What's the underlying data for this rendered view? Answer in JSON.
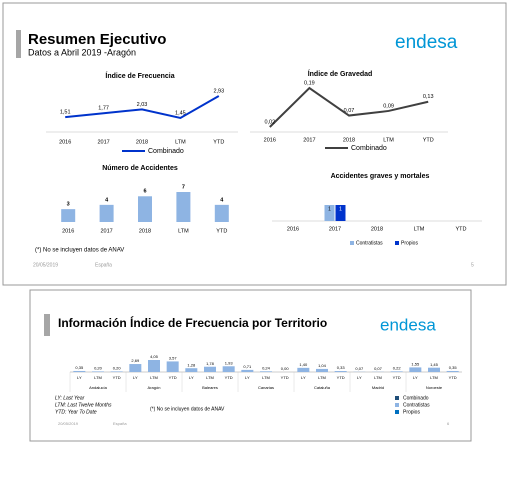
{
  "slides": [
    {
      "title": "Resumen Ejecutivo",
      "subtitle": "Datos a Abril 2019 -Aragón",
      "logo": "endesa",
      "note": "(*) No se incluyen datos de ANAV",
      "date": "20/05/2019",
      "country": "España",
      "page": "5"
    },
    {
      "title": "Información Índice de Frecuencia por Territorio",
      "logo": "endesa",
      "notes": [
        "LY: Last Year",
        "LTM: Last Twelve Months",
        "YTD: Year To Date"
      ],
      "note": "(*) No se incluyen datos de ANAV",
      "date": "20/05/2019",
      "country": "España",
      "page": "6",
      "legend": [
        {
          "name": "Combinado",
          "color": "#1f4e79"
        },
        {
          "name": "Contratistas",
          "color": "#8eb4e3"
        },
        {
          "name": "Propios",
          "color": "#0070c0"
        }
      ]
    }
  ],
  "chart_data": [
    {
      "type": "line",
      "title": "Índice de Frecuencia",
      "categories": [
        "2016",
        "2017",
        "2018",
        "LTM",
        "YTD"
      ],
      "series": [
        {
          "name": "Combinado",
          "color": "#0033cc",
          "values": [
            1.51,
            1.77,
            2.03,
            1.45,
            2.93
          ],
          "value_labels": [
            "1,51",
            "1,77",
            "2,03",
            "1,45",
            "2,93"
          ]
        }
      ]
    },
    {
      "type": "line",
      "title": "Índice de Gravedad",
      "categories": [
        "2016",
        "2017",
        "2018",
        "LTM",
        "YTD"
      ],
      "series": [
        {
          "name": "Combinado",
          "color": "#404040",
          "values": [
            0.02,
            0.19,
            0.07,
            0.09,
            0.13
          ],
          "value_labels": [
            "0,02",
            "0,19",
            "0,07",
            "0,09",
            "0,13"
          ]
        }
      ]
    },
    {
      "type": "bar",
      "title": "Número de Accidentes",
      "categories": [
        "2016",
        "2017",
        "2018",
        "LTM",
        "YTD"
      ],
      "color": "#8eb4e3",
      "values": [
        3,
        4,
        6,
        7,
        4
      ]
    },
    {
      "type": "grouped",
      "title": "Accidentes graves y mortales",
      "categories": [
        "2016",
        "2017",
        "2018",
        "LTM",
        "YTD"
      ],
      "series": [
        {
          "name": "Contratistas",
          "color": "#8eb4e3",
          "values": [
            null,
            1,
            null,
            null,
            null
          ]
        },
        {
          "name": "Propios",
          "color": "#0033cc",
          "values": [
            null,
            1,
            null,
            null,
            null
          ]
        }
      ]
    },
    {
      "type": "territory",
      "groups": [
        "Andalucía",
        "Aragón",
        "Baleares",
        "Canarias",
        "Cataluña",
        "Madrid",
        "Noroeste"
      ],
      "categories": [
        "LY",
        "LTM",
        "YTD",
        "LY",
        "LTM",
        "YTD",
        "LY",
        "LTM",
        "YTD",
        "LY",
        "LTM",
        "YTD",
        "LY",
        "LTM",
        "YTD",
        "LY",
        "LTM",
        "YTD",
        "LY",
        "LTM",
        "YTD"
      ],
      "color": "#8eb4e3",
      "values": [
        0.35,
        0.2,
        0.2,
        2.69,
        4.05,
        3.57,
        1.28,
        1.78,
        1.93,
        0.71,
        0.24,
        0.0,
        1.4,
        1.04,
        0.33,
        0.07,
        0.07,
        0.22,
        1.55,
        1.45,
        0.35
      ],
      "value_labels": [
        "0,35",
        "0,20",
        "0,20",
        "2,69",
        "4,05",
        "3,57",
        "1,28",
        "1,78",
        "1,93",
        "0,71",
        "0,24",
        "0,00",
        "1,40",
        "1,04",
        "0,33",
        "0,07",
        "0,07",
        "0,22",
        "1,55",
        "1,45",
        "0,35"
      ]
    }
  ]
}
